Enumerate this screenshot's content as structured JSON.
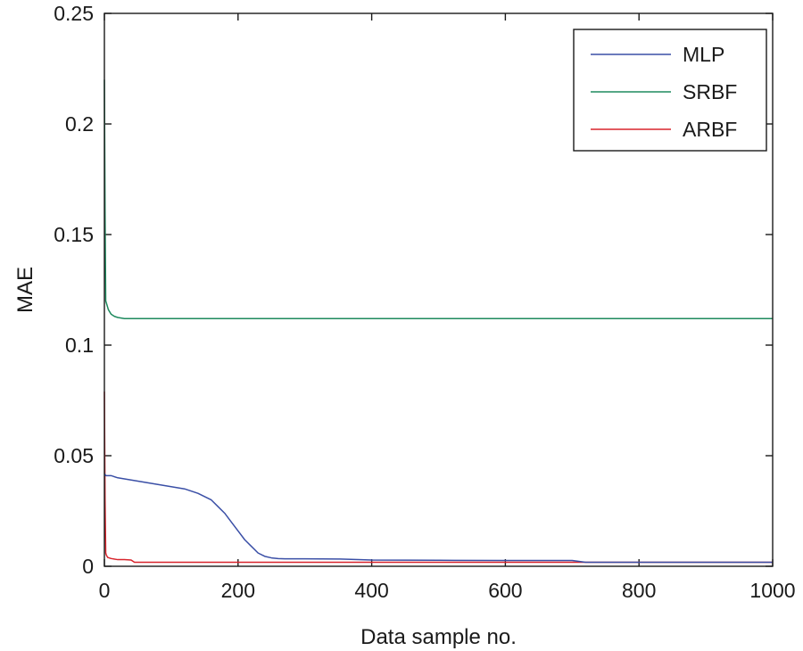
{
  "chart_data": {
    "type": "line",
    "title": "",
    "xlabel": "Data sample no.",
    "ylabel": "MAE",
    "xlim": [
      0,
      1000
    ],
    "ylim": [
      0,
      0.25
    ],
    "xticks": [
      0,
      200,
      400,
      600,
      800,
      1000
    ],
    "xtick_labels": [
      "0",
      "200",
      "400",
      "600",
      "800",
      "1000"
    ],
    "yticks": [
      0,
      0.05,
      0.1,
      0.15,
      0.2,
      0.25
    ],
    "ytick_labels": [
      "0",
      "0.05",
      "0.1",
      "0.15",
      "0.2",
      "0.25"
    ],
    "grid": false,
    "legend_position": "top-right",
    "series": [
      {
        "name": "MLP",
        "color": "#3a4fa6",
        "x": [
          0,
          2,
          10,
          20,
          40,
          60,
          80,
          100,
          120,
          140,
          160,
          170,
          180,
          190,
          200,
          210,
          220,
          230,
          240,
          250,
          260,
          270,
          280,
          300,
          350,
          380,
          400,
          500,
          600,
          700,
          710,
          720,
          800,
          900,
          1000
        ],
        "y": [
          0.042,
          0.041,
          0.041,
          0.04,
          0.039,
          0.038,
          0.037,
          0.036,
          0.035,
          0.033,
          0.03,
          0.027,
          0.024,
          0.02,
          0.016,
          0.012,
          0.009,
          0.006,
          0.0045,
          0.0038,
          0.0035,
          0.0034,
          0.0034,
          0.0034,
          0.0033,
          0.003,
          0.0028,
          0.0027,
          0.0026,
          0.0026,
          0.0022,
          0.0018,
          0.0018,
          0.0018,
          0.0018
        ]
      },
      {
        "name": "SRBF",
        "color": "#1e8a5e",
        "x": [
          0,
          1,
          2,
          4,
          6,
          10,
          15,
          20,
          30,
          50,
          100,
          200,
          400,
          600,
          800,
          1000
        ],
        "y": [
          0.22,
          0.16,
          0.12,
          0.118,
          0.116,
          0.114,
          0.113,
          0.1125,
          0.112,
          0.112,
          0.112,
          0.112,
          0.112,
          0.112,
          0.112,
          0.112
        ]
      },
      {
        "name": "ARBF",
        "color": "#d8242c",
        "x": [
          0,
          1,
          2,
          3,
          5,
          10,
          20,
          30,
          40,
          45,
          100,
          200,
          400,
          600,
          800,
          1000
        ],
        "y": [
          0.079,
          0.03,
          0.006,
          0.005,
          0.004,
          0.0035,
          0.003,
          0.003,
          0.0028,
          0.0018,
          0.0018,
          0.0018,
          0.0018,
          0.0018,
          0.0018,
          0.0018
        ]
      }
    ]
  }
}
